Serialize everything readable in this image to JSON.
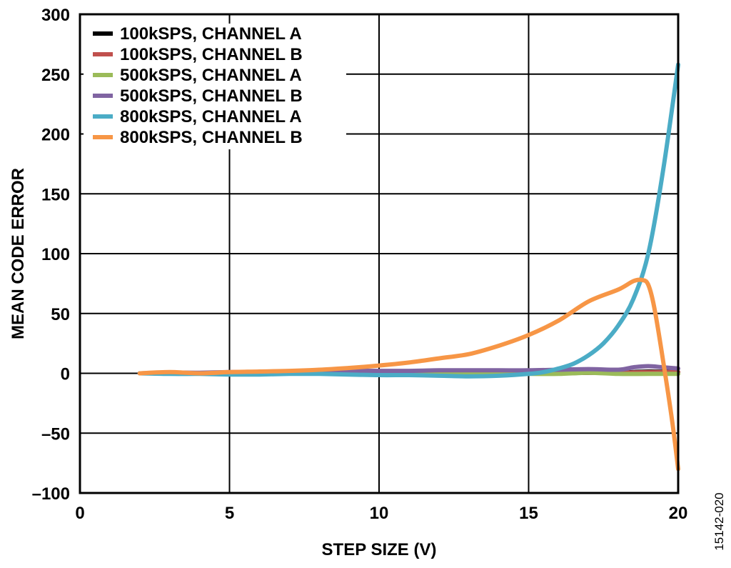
{
  "figure_id": "15142-020",
  "chart_data": {
    "type": "line",
    "title": "",
    "xlabel": "STEP SIZE (V)",
    "ylabel": "MEAN CODE ERROR",
    "xlim": [
      0,
      20
    ],
    "ylim": [
      -100,
      300
    ],
    "xticks": [
      0,
      5,
      10,
      15,
      20
    ],
    "yticks": [
      -100,
      -50,
      0,
      50,
      100,
      150,
      200,
      250,
      300
    ],
    "xtick_labels": [
      "0",
      "5",
      "10",
      "15",
      "20"
    ],
    "ytick_labels": [
      "–100",
      "–50",
      "0",
      "50",
      "100",
      "150",
      "200",
      "250",
      "300"
    ],
    "grid": true,
    "legend_position": "top-left",
    "series": [
      {
        "name": "100kSPS, CHANNEL A",
        "color": "#000000",
        "x": [
          2,
          3,
          4,
          5,
          6,
          7,
          8,
          9,
          10,
          11,
          12,
          13,
          14,
          15,
          16,
          17,
          18,
          19,
          20
        ],
        "y": [
          0,
          0,
          0,
          0,
          0,
          0,
          0,
          0,
          0,
          0,
          0,
          0,
          0,
          0,
          0,
          0.5,
          0.5,
          1.5,
          1
        ]
      },
      {
        "name": "100kSPS, CHANNEL B",
        "color": "#c0504d",
        "x": [
          2,
          3,
          4,
          5,
          6,
          7,
          8,
          9,
          10,
          11,
          12,
          13,
          14,
          15,
          16,
          17,
          18,
          19,
          20
        ],
        "y": [
          0,
          0,
          0,
          0,
          0,
          0,
          0,
          0,
          0,
          0,
          0,
          0,
          0,
          0,
          0,
          0.5,
          0.5,
          1,
          1
        ]
      },
      {
        "name": "500kSPS, CHANNEL A",
        "color": "#9bbb59",
        "x": [
          2,
          3,
          4,
          5,
          6,
          7,
          8,
          9,
          10,
          11,
          12,
          13,
          14,
          15,
          16,
          17,
          18,
          19,
          20
        ],
        "y": [
          0,
          0,
          0,
          0,
          0,
          0,
          0,
          0,
          0,
          0,
          -0.5,
          -0.5,
          -0.5,
          -0.5,
          -0.5,
          0.5,
          -0.5,
          -0.5,
          -0.5
        ]
      },
      {
        "name": "500kSPS, CHANNEL B",
        "color": "#8064a2",
        "x": [
          2,
          3,
          4,
          5,
          6,
          7,
          8,
          9,
          10,
          11,
          12,
          13,
          14,
          15,
          16,
          17,
          18,
          18.5,
          19,
          19.5,
          20
        ],
        "y": [
          0,
          0.5,
          0.5,
          1,
          1,
          1.5,
          1.5,
          2,
          2,
          2,
          2.5,
          2.5,
          2.5,
          2.5,
          3,
          3.5,
          3,
          5,
          6,
          5,
          4
        ]
      },
      {
        "name": "800kSPS, CHANNEL A",
        "color": "#4bacc6",
        "x": [
          2,
          3,
          4,
          5,
          6,
          7,
          8,
          9,
          10,
          11,
          12,
          13,
          14,
          15,
          15.5,
          16,
          16.5,
          17,
          17.5,
          18,
          18.5,
          19,
          19.5,
          20
        ],
        "y": [
          0,
          -0.5,
          -0.5,
          -1,
          -1,
          -0.5,
          -0.5,
          -1,
          -1.5,
          -1.5,
          -2,
          -2.5,
          -2,
          -0.5,
          1,
          4,
          8,
          15,
          25,
          40,
          62,
          100,
          170,
          258
        ]
      },
      {
        "name": "800kSPS, CHANNEL B",
        "color": "#f79646",
        "x": [
          2,
          3,
          4,
          5,
          6,
          7,
          8,
          9,
          10,
          11,
          12,
          13,
          14,
          15,
          16,
          17,
          18,
          18.5,
          18.8,
          19,
          19.2,
          19.5,
          19.8,
          20
        ],
        "y": [
          0,
          1,
          0,
          1,
          1.5,
          2,
          3,
          4.5,
          6.5,
          9,
          12.5,
          16,
          23,
          32,
          44,
          60,
          70,
          77,
          78,
          74,
          55,
          10,
          -40,
          -80
        ]
      }
    ]
  }
}
